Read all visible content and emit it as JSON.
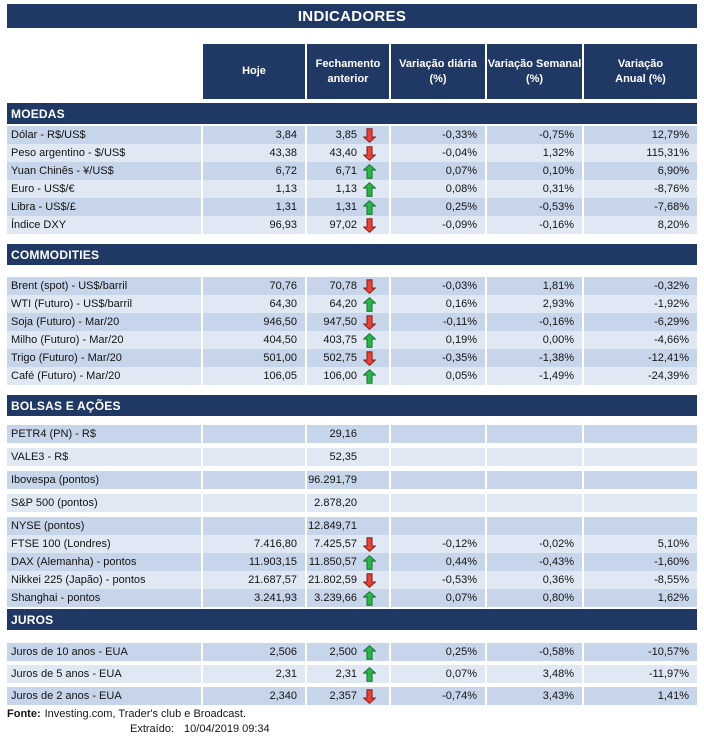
{
  "chart_data": {
    "type": "table",
    "title": "INDICADORES",
    "columns": [
      "Hoje",
      "Fechamento\nanterior",
      "Variação diária\n(%)",
      "Variação Semanal\n(%)",
      "Variação\nAnual (%)"
    ],
    "sections": [
      {
        "name": "MOEDAS",
        "rows": [
          [
            "Dólar - R$/US$",
            "3,84",
            "3,85",
            "down",
            "-0,33%",
            "-0,75%",
            "12,79%"
          ],
          [
            "Peso argentino - $/US$",
            "43,38",
            "43,40",
            "down",
            "-0,04%",
            "1,32%",
            "115,31%"
          ],
          [
            "Yuan Chinês - ¥/US$",
            "6,72",
            "6,71",
            "up",
            "0,07%",
            "0,10%",
            "6,90%"
          ],
          [
            "Euro - US$/€",
            "1,13",
            "1,13",
            "up",
            "0,08%",
            "0,31%",
            "-8,76%"
          ],
          [
            "Libra - US$/£",
            "1,31",
            "1,31",
            "up",
            "0,25%",
            "-0,53%",
            "-7,68%"
          ],
          [
            "Índice DXY",
            "96,93",
            "97,02",
            "down",
            "-0,09%",
            "-0,16%",
            "8,20%"
          ]
        ]
      },
      {
        "name": "COMMODITIES",
        "rows": [
          [
            "Brent (spot) - US$/barril",
            "70,76",
            "70,78",
            "down",
            "-0,03%",
            "1,81%",
            "-0,32%"
          ],
          [
            "WTI (Futuro) - US$/barril",
            "64,30",
            "64,20",
            "up",
            "0,16%",
            "2,93%",
            "-1,92%"
          ],
          [
            "Soja (Futuro) - Mar/20",
            "946,50",
            "947,50",
            "down",
            "-0,11%",
            "-0,16%",
            "-6,29%"
          ],
          [
            "Milho (Futuro) - Mar/20",
            "404,50",
            "403,75",
            "up",
            "0,19%",
            "0,00%",
            "-4,66%"
          ],
          [
            "Trigo (Futuro) - Mar/20",
            "501,00",
            "502,75",
            "down",
            "-0,35%",
            "-1,38%",
            "-12,41%"
          ],
          [
            "Café (Futuro) - Mar/20",
            "106,05",
            "106,00",
            "up",
            "0,05%",
            "-1,49%",
            "-24,39%"
          ]
        ]
      },
      {
        "name": "BOLSAS E AÇÕES",
        "rows": [
          [
            "PETR4 (PN) - R$",
            "",
            "29,16",
            "",
            "",
            "",
            ""
          ],
          [
            "VALE3 - R$",
            "",
            "52,35",
            "",
            "",
            "",
            ""
          ],
          [
            "Ibovespa (pontos)",
            "",
            "96.291,79",
            "",
            "",
            "",
            ""
          ],
          [
            "S&P 500 (pontos)",
            "",
            "2.878,20",
            "",
            "",
            "",
            ""
          ],
          [
            "NYSE (pontos)",
            "",
            "12.849,71",
            "",
            "",
            "",
            ""
          ],
          [
            "FTSE 100 (Londres)",
            "7.416,80",
            "7.425,57",
            "down",
            "-0,12%",
            "-0,02%",
            "5,10%"
          ],
          [
            "DAX (Alemanha) - pontos",
            "11.903,15",
            "11.850,57",
            "up",
            "0,44%",
            "-0,43%",
            "-1,60%"
          ],
          [
            "Nikkei 225 (Japão) - pontos",
            "21.687,57",
            "21.802,59",
            "down",
            "-0,53%",
            "0,36%",
            "-8,55%"
          ],
          [
            "Shanghai - pontos",
            "3.241,93",
            "3.239,66",
            "up",
            "0,07%",
            "0,80%",
            "1,62%"
          ]
        ]
      },
      {
        "name": "JUROS",
        "rows": [
          [
            "Juros de 10 anos - EUA",
            "2,506",
            "2,500",
            "up",
            "0,25%",
            "-0,58%",
            "-10,57%"
          ],
          [
            "Juros de 5 anos - EUA",
            "2,31",
            "2,31",
            "up",
            "0,07%",
            "3,48%",
            "-11,97%"
          ],
          [
            "Juros de 2 anos - EUA",
            "2,340",
            "2,357",
            "down",
            "-0,74%",
            "3,43%",
            "1,41%"
          ]
        ]
      }
    ]
  },
  "footer": {
    "source_label": "Fonte:",
    "source_text": "Investing.com, Trader's club e Broadcast.",
    "extracted_label": "Extraído:",
    "extracted_value": "10/04/2019 09:34"
  },
  "colors": {
    "header_bg": "#203864",
    "header_text": "#ffffff",
    "row_stripe_dark": "#c6d5ea",
    "row_stripe_light": "#dfe8f3",
    "arrow_up": "#2eb34f",
    "arrow_up_border": "#1d7a35",
    "arrow_down": "#e2453c",
    "arrow_down_border": "#8f241d"
  }
}
